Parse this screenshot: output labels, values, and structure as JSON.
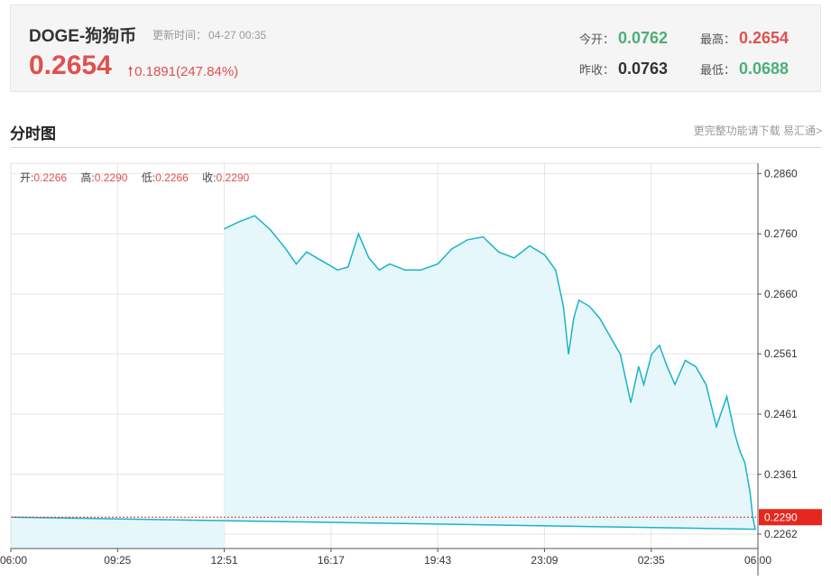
{
  "header": {
    "name": "DOGE-狗狗币",
    "update_label": "更新时间：",
    "update_time": "04-27 00:35",
    "price": "0.2654",
    "change": "0.1891(247.84%)",
    "open_label": "今开：",
    "open_value": "0.0762",
    "high_label": "最高：",
    "high_value": "0.2654",
    "prevclose_label": "昨收：",
    "prevclose_value": "0.0763",
    "low_label": "最低：",
    "low_value": "0.0688"
  },
  "section": {
    "title": "分时图",
    "link": "更完整功能请下载 易汇通>"
  },
  "ohlc": {
    "open_label": "开:",
    "open": "0.2266",
    "high_label": "高:",
    "high": "0.2290",
    "low_label": "低:",
    "low": "0.2266",
    "close_label": "收:",
    "close": "0.2290"
  },
  "colors": {
    "line": "#19b3c8",
    "area": "#e6f7fb",
    "current": "#e5281e",
    "grid": "#e4e4e4"
  },
  "chart_data": {
    "type": "area",
    "x_ticks": [
      "06:00",
      "09:25",
      "12:51",
      "16:17",
      "19:43",
      "23:09",
      "02:35",
      "06:00"
    ],
    "y_ticks": [
      "0.2860",
      "0.2760",
      "0.2660",
      "0.2561",
      "0.2461",
      "0.2361",
      "0.2262"
    ],
    "y_range": [
      0.2238,
      0.2877
    ],
    "current_price": "0.2290",
    "series": [
      {
        "x": [
          "12:51",
          "13:20",
          "13:50",
          "14:20",
          "14:50",
          "15:10",
          "15:30",
          "16:00",
          "16:30",
          "16:50",
          "17:10",
          "17:30",
          "17:50",
          "18:10",
          "18:40",
          "19:10",
          "19:43",
          "20:10",
          "20:40",
          "21:10",
          "21:40",
          "22:10",
          "22:40",
          "23:09",
          "23:30",
          "23:45",
          "23:55",
          "00:05",
          "00:15",
          "00:35",
          "00:55",
          "01:15",
          "01:35",
          "01:55",
          "02:10",
          "02:20",
          "02:35",
          "02:50",
          "03:05",
          "03:20",
          "03:40",
          "04:00",
          "04:20",
          "04:40",
          "05:00",
          "05:15",
          "05:25",
          "05:35",
          "05:45",
          "05:50",
          "05:55",
          "06:00"
        ],
        "y": [
          0.2768,
          0.278,
          0.279,
          0.2767,
          0.2735,
          0.271,
          0.273,
          0.2715,
          0.27,
          0.2705,
          0.276,
          0.272,
          0.27,
          0.271,
          0.27,
          0.27,
          0.271,
          0.2735,
          0.275,
          0.2755,
          0.273,
          0.272,
          0.274,
          0.2725,
          0.27,
          0.264,
          0.256,
          0.262,
          0.265,
          0.264,
          0.262,
          0.259,
          0.256,
          0.248,
          0.254,
          0.251,
          0.256,
          0.2575,
          0.254,
          0.251,
          0.255,
          0.254,
          0.251,
          0.244,
          0.249,
          0.243,
          0.24,
          0.238,
          0.233,
          0.229,
          0.227,
          0.229
        ]
      }
    ]
  }
}
